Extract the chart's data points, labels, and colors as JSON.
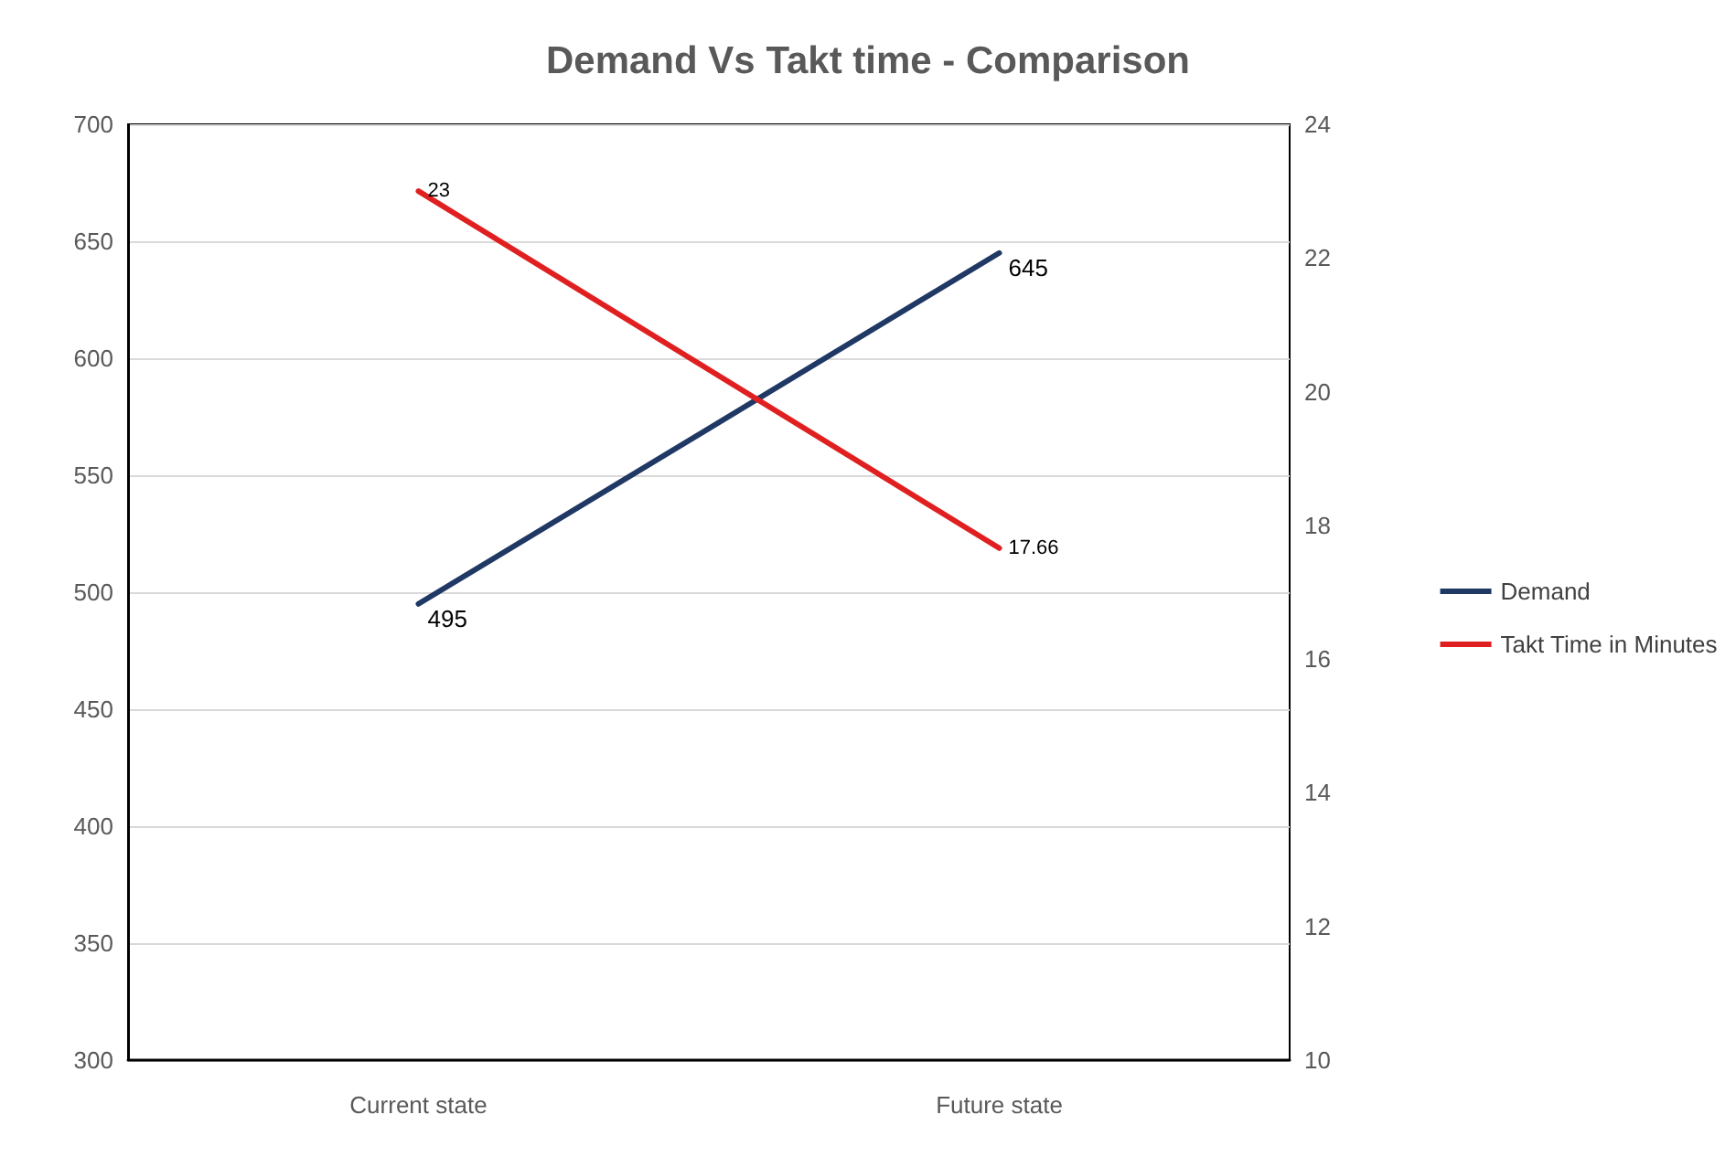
{
  "chart_data": {
    "type": "line",
    "title": "Demand Vs Takt time - Comparison",
    "categories": [
      "Current state",
      "Future state"
    ],
    "series": [
      {
        "name": "Demand",
        "color": "#1f3864",
        "values": [
          495,
          645
        ]
      },
      {
        "name": "Takt Time in Minutes",
        "color": "#e02020",
        "values": [
          23,
          17.66
        ],
        "axis": "y2"
      }
    ],
    "ylim": [
      300,
      700
    ],
    "yticks": [
      300,
      350,
      400,
      450,
      500,
      550,
      600,
      650,
      700
    ],
    "y2lim": [
      10,
      24
    ],
    "y2ticks": [
      10,
      12,
      14,
      16,
      18,
      20,
      22,
      24
    ],
    "grid": "y",
    "legend": "right",
    "marker": "none",
    "data_labels": true
  }
}
